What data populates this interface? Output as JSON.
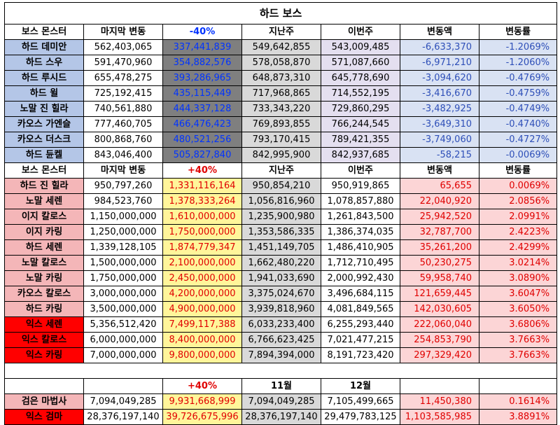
{
  "title": "하드 보스",
  "section1": {
    "headers": [
      "보스 몬스터",
      "마지막 변동",
      "-40%",
      "지난주",
      "이번주",
      "변동액",
      "변동률"
    ],
    "rows": [
      [
        "하드 데미안",
        "562,403,065",
        "337,441,839",
        "549,642,855",
        "543,009,485",
        "-6,633,370",
        "-1.2069%"
      ],
      [
        "하드 스우",
        "591,470,960",
        "354,882,576",
        "578,058,870",
        "571,087,660",
        "-6,971,210",
        "-1.2060%"
      ],
      [
        "하드 루시드",
        "655,478,275",
        "393,286,965",
        "648,873,310",
        "645,778,690",
        "-3,094,620",
        "-0.4769%"
      ],
      [
        "하드 윌",
        "725,192,415",
        "435,115,449",
        "717,968,865",
        "714,552,195",
        "-3,416,670",
        "-0.4759%"
      ],
      [
        "노말 진 힐라",
        "740,561,880",
        "444,337,128",
        "733,343,220",
        "729,860,295",
        "-3,482,925",
        "-0.4749%"
      ],
      [
        "카오스 가엔슬",
        "777,460,705",
        "466,476,423",
        "769,893,855",
        "766,244,545",
        "-3,649,310",
        "-0.4740%"
      ],
      [
        "카오스 더스크",
        "800,868,760",
        "480,521,256",
        "793,170,415",
        "789,421,355",
        "-3,749,060",
        "-0.4727%"
      ],
      [
        "하드 듄켈",
        "843,046,400",
        "505,827,840",
        "842,995,900",
        "842,937,685",
        "-58,215",
        "-0.0069%"
      ]
    ]
  },
  "section2": {
    "headers": [
      "보스 몬스터",
      "마지막 변동",
      "+40%",
      "지난주",
      "이번주",
      "변동액",
      "변동률"
    ],
    "rows": [
      [
        "하드 진 힐라",
        "950,797,260",
        "1,331,116,164",
        "950,854,210",
        "950,919,865",
        "65,655",
        "0.0069%"
      ],
      [
        "노말 세렌",
        "984,523,760",
        "1,378,333,264",
        "1,056,816,960",
        "1,078,857,880",
        "22,040,920",
        "2.0856%"
      ],
      [
        "이지 칼로스",
        "1,150,000,000",
        "1,610,000,000",
        "1,235,900,980",
        "1,261,843,500",
        "25,942,520",
        "2.0991%"
      ],
      [
        "이지 카링",
        "1,250,000,000",
        "1,750,000,000",
        "1,353,586,335",
        "1,386,374,035",
        "32,787,700",
        "2.4223%"
      ],
      [
        "하드 세렌",
        "1,339,128,105",
        "1,874,779,347",
        "1,451,149,705",
        "1,486,410,905",
        "35,261,200",
        "2.4299%"
      ],
      [
        "노말 칼로스",
        "1,500,000,000",
        "2,100,000,000",
        "1,662,480,220",
        "1,712,710,495",
        "50,230,275",
        "3.0214%"
      ],
      [
        "노말 카링",
        "1,750,000,000",
        "2,450,000,000",
        "1,941,033,690",
        "2,000,992,430",
        "59,958,740",
        "3.0890%"
      ],
      [
        "카오스 칼로스",
        "3,000,000,000",
        "4,200,000,000",
        "3,375,024,670",
        "3,496,684,115",
        "121,659,445",
        "3.6047%"
      ],
      [
        "하드 카링",
        "3,500,000,000",
        "4,900,000,000",
        "3,939,818,960",
        "4,081,849,565",
        "142,030,605",
        "3.6050%"
      ],
      [
        "익스 세렌",
        "5,356,512,420",
        "7,499,117,388",
        "6,033,233,400",
        "6,255,293,440",
        "222,060,040",
        "3.6806%"
      ],
      [
        "익스 칼로스",
        "6,000,000,000",
        "8,400,000,000",
        "6,766,623,425",
        "7,021,477,215",
        "254,853,790",
        "3.7663%"
      ],
      [
        "익스 카링",
        "7,000,000,000",
        "9,800,000,000",
        "7,894,394,000",
        "8,191,723,420",
        "297,329,420",
        "3.7663%"
      ]
    ]
  },
  "section3": {
    "headers": [
      "",
      "",
      "+40%",
      "11월",
      "12월",
      "",
      ""
    ],
    "rows": [
      [
        "검은 마법사",
        "7,094,049,285",
        "9,931,668,999",
        "7,094,049,285",
        "7,105,499,665",
        "11,450,380",
        "0.1614%"
      ],
      [
        "익스 검마",
        "28,376,197,140",
        "39,726,675,996",
        "28,376,197,140",
        "29,479,783,125",
        "1,103,585,985",
        "3.8891%"
      ]
    ]
  },
  "colors": {
    "blue_bg": "#b4c6e7",
    "gray_bg": "#7f7f7f",
    "pink_bg": "#f4b6b8",
    "red_bg": "#ff0000",
    "yellow_bg": "#fff59a",
    "blue_text": "#0033ff",
    "red_text": "#e00000"
  }
}
